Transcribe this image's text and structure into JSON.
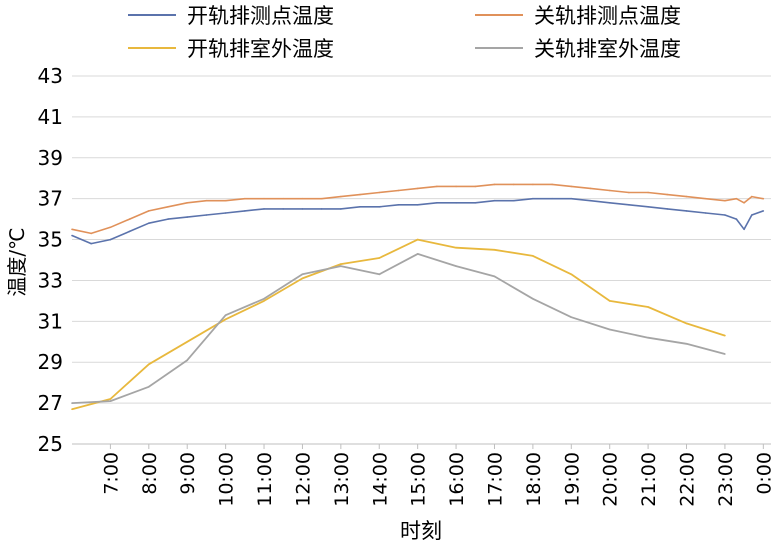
{
  "chart_data": {
    "type": "line",
    "title": "",
    "xlabel": "时刻",
    "ylabel": "温度/℃",
    "ylim": [
      25,
      43
    ],
    "yticks": [
      25,
      27,
      29,
      31,
      33,
      35,
      37,
      39,
      41,
      43
    ],
    "xlim": [
      6.0,
      24.2
    ],
    "xticks": [
      {
        "x": 7,
        "label": "7:00"
      },
      {
        "x": 8,
        "label": "8:00"
      },
      {
        "x": 9,
        "label": "9:00"
      },
      {
        "x": 10,
        "label": "10:00"
      },
      {
        "x": 11,
        "label": "11:00"
      },
      {
        "x": 12,
        "label": "12:00"
      },
      {
        "x": 13,
        "label": "13:00"
      },
      {
        "x": 14,
        "label": "14:00"
      },
      {
        "x": 15,
        "label": "15:00"
      },
      {
        "x": 16,
        "label": "16:00"
      },
      {
        "x": 17,
        "label": "17:00"
      },
      {
        "x": 18,
        "label": "18:00"
      },
      {
        "x": 19,
        "label": "19:00"
      },
      {
        "x": 20,
        "label": "20:00"
      },
      {
        "x": 21,
        "label": "21:00"
      },
      {
        "x": 22,
        "label": "22:00"
      },
      {
        "x": 23,
        "label": "23:00"
      },
      {
        "x": 24,
        "label": "0:00"
      }
    ],
    "grid": "horizontal",
    "legend_position": "top",
    "series": [
      {
        "name": "开轨排测点温度",
        "color": "#5B73AC",
        "x": [
          6.0,
          6.5,
          7.0,
          7.5,
          8.0,
          8.5,
          9.0,
          9.5,
          10.0,
          10.5,
          11.0,
          11.5,
          12.0,
          12.5,
          13.0,
          13.5,
          14.0,
          14.5,
          15.0,
          15.5,
          16.0,
          16.5,
          17.0,
          17.5,
          18.0,
          18.5,
          19.0,
          19.5,
          20.0,
          20.5,
          21.0,
          21.5,
          22.0,
          22.5,
          23.0,
          23.3,
          23.5,
          23.7,
          24.0
        ],
        "y": [
          35.2,
          34.8,
          35.0,
          35.4,
          35.8,
          36.0,
          36.1,
          36.2,
          36.3,
          36.4,
          36.5,
          36.5,
          36.5,
          36.5,
          36.5,
          36.6,
          36.6,
          36.7,
          36.7,
          36.8,
          36.8,
          36.8,
          36.9,
          36.9,
          37.0,
          37.0,
          37.0,
          36.9,
          36.8,
          36.7,
          36.6,
          36.5,
          36.4,
          36.3,
          36.2,
          36.0,
          35.5,
          36.2,
          36.4
        ]
      },
      {
        "name": "关轨排测点温度",
        "color": "#E0915A",
        "x": [
          6.0,
          6.5,
          7.0,
          7.5,
          8.0,
          8.5,
          9.0,
          9.5,
          10.0,
          10.5,
          11.0,
          11.5,
          12.0,
          12.5,
          13.0,
          13.5,
          14.0,
          14.5,
          15.0,
          15.5,
          16.0,
          16.5,
          17.0,
          17.5,
          18.0,
          18.5,
          19.0,
          19.5,
          20.0,
          20.5,
          21.0,
          21.5,
          22.0,
          22.5,
          23.0,
          23.3,
          23.5,
          23.7,
          24.0
        ],
        "y": [
          35.5,
          35.3,
          35.6,
          36.0,
          36.4,
          36.6,
          36.8,
          36.9,
          36.9,
          37.0,
          37.0,
          37.0,
          37.0,
          37.0,
          37.1,
          37.2,
          37.3,
          37.4,
          37.5,
          37.6,
          37.6,
          37.6,
          37.7,
          37.7,
          37.7,
          37.7,
          37.6,
          37.5,
          37.4,
          37.3,
          37.3,
          37.2,
          37.1,
          37.0,
          36.9,
          37.0,
          36.8,
          37.1,
          37.0
        ]
      },
      {
        "name": "开轨排室外温度",
        "color": "#E8B83D",
        "x": [
          6.0,
          7.0,
          8.0,
          9.0,
          10.0,
          11.0,
          12.0,
          13.0,
          14.0,
          15.0,
          16.0,
          17.0,
          18.0,
          19.0,
          20.0,
          21.0,
          22.0,
          23.0
        ],
        "y": [
          26.7,
          27.2,
          28.9,
          30.0,
          31.1,
          32.0,
          33.1,
          33.8,
          34.1,
          35.0,
          34.6,
          34.5,
          34.2,
          33.3,
          32.0,
          31.7,
          30.9,
          30.3
        ]
      },
      {
        "name": "关轨排室外温度",
        "color": "#A5A5A5",
        "x": [
          6.0,
          7.0,
          8.0,
          9.0,
          10.0,
          11.0,
          12.0,
          13.0,
          14.0,
          15.0,
          16.0,
          17.0,
          18.0,
          19.0,
          20.0,
          21.0,
          22.0,
          23.0
        ],
        "y": [
          27.0,
          27.1,
          27.8,
          29.1,
          31.3,
          32.1,
          33.3,
          33.7,
          33.3,
          34.3,
          33.7,
          33.2,
          32.1,
          31.2,
          30.6,
          30.2,
          29.9,
          29.4
        ]
      }
    ]
  }
}
